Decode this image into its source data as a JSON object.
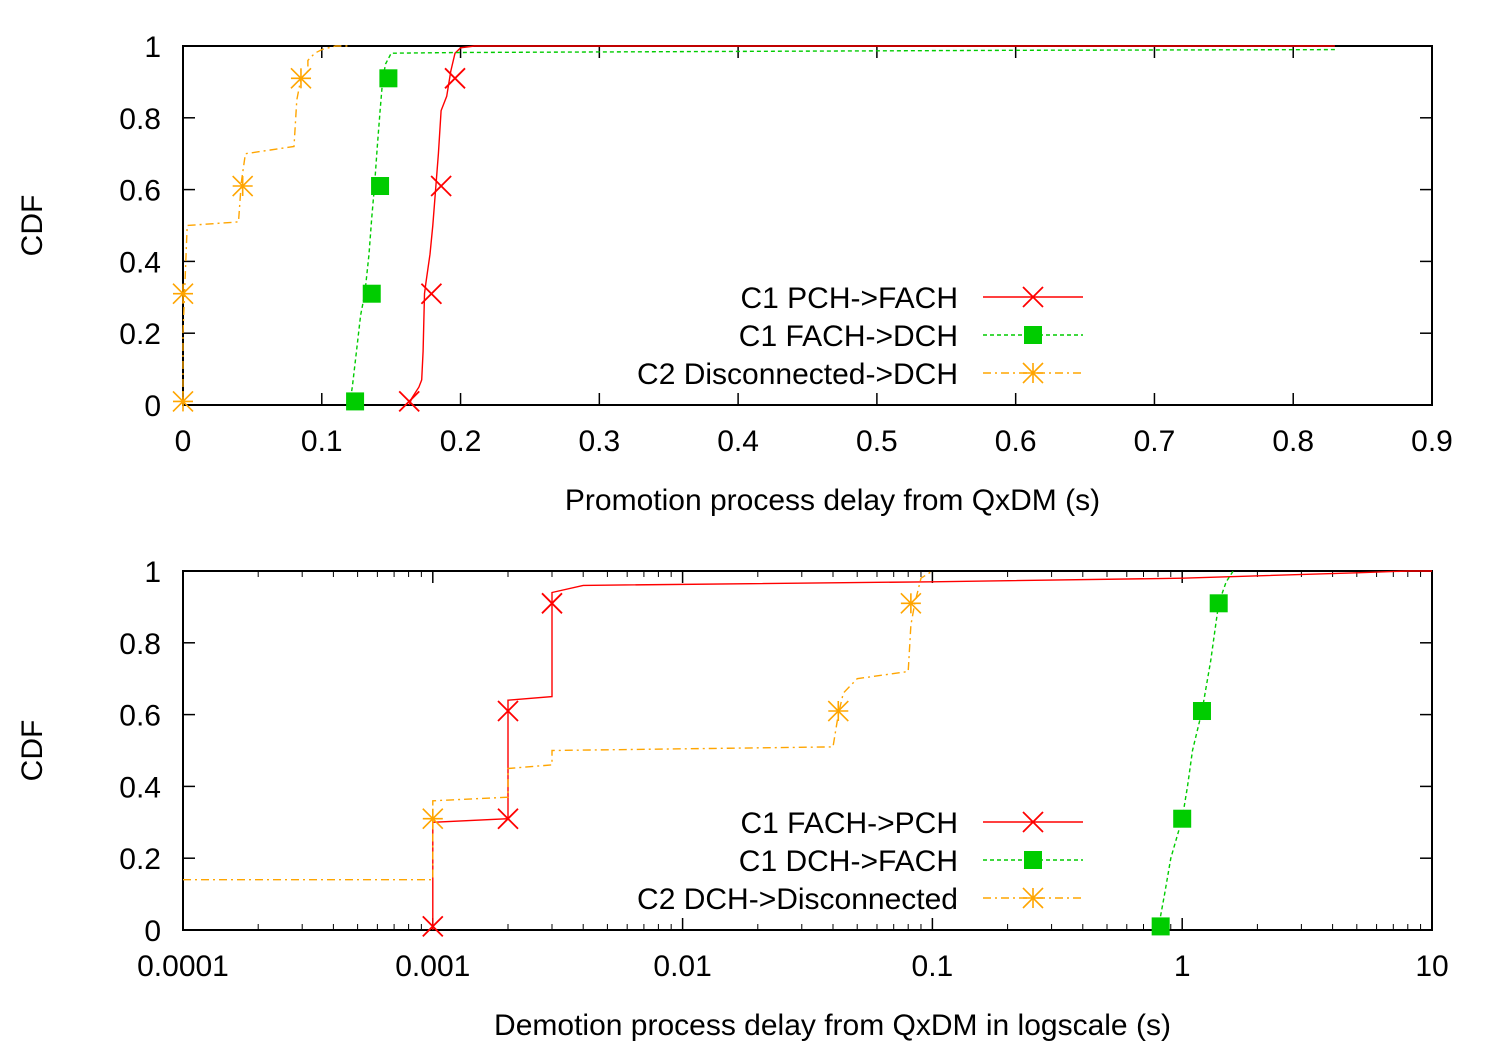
{
  "chart_data": [
    {
      "type": "line",
      "subtype": "cdf-step",
      "xlabel": "Promotion process delay from QxDM (s)",
      "ylabel": "CDF",
      "xscale": "linear",
      "xlim": [
        0,
        0.9
      ],
      "ylim": [
        0,
        1
      ],
      "xticks": [
        0,
        0.1,
        0.2,
        0.3,
        0.4,
        0.5,
        0.6,
        0.7,
        0.8,
        0.9
      ],
      "xtick_labels": [
        "0",
        "0.1",
        "0.2",
        "0.3",
        "0.4",
        "0.5",
        "0.6",
        "0.7",
        "0.8",
        "0.9"
      ],
      "yticks": [
        0,
        0.2,
        0.4,
        0.6,
        0.8,
        1
      ],
      "ytick_labels": [
        "0",
        "0.2",
        "0.4",
        "0.6",
        "0.8",
        "1"
      ],
      "grid": false,
      "legend_position": "bottom-center",
      "series": [
        {
          "name": "C1 PCH->FACH",
          "color": "#ff0000",
          "dash": "solid",
          "marker": "cross",
          "points": [
            [
              0.163,
              0
            ],
            [
              0.165,
              0.02
            ],
            [
              0.17,
              0.05
            ],
            [
              0.172,
              0.07
            ],
            [
              0.173,
              0.15
            ],
            [
              0.174,
              0.31
            ],
            [
              0.175,
              0.34
            ],
            [
              0.178,
              0.42
            ],
            [
              0.18,
              0.5
            ],
            [
              0.182,
              0.6
            ],
            [
              0.184,
              0.7
            ],
            [
              0.186,
              0.82
            ],
            [
              0.19,
              0.86
            ],
            [
              0.193,
              0.93
            ],
            [
              0.196,
              0.98
            ],
            [
              0.2,
              0.995
            ],
            [
              0.21,
              1.0
            ],
            [
              0.83,
              1.0
            ]
          ],
          "markers": [
            [
              0.163,
              0.01
            ],
            [
              0.179,
              0.31
            ],
            [
              0.186,
              0.61
            ],
            [
              0.196,
              0.91
            ]
          ]
        },
        {
          "name": "C1 FACH->DCH",
          "color": "#00cc00",
          "dash": "dotted",
          "marker": "filled-square",
          "points": [
            [
              0.12,
              0
            ],
            [
              0.122,
              0.05
            ],
            [
              0.125,
              0.15
            ],
            [
              0.128,
              0.25
            ],
            [
              0.131,
              0.31
            ],
            [
              0.134,
              0.42
            ],
            [
              0.136,
              0.52
            ],
            [
              0.138,
              0.61
            ],
            [
              0.14,
              0.72
            ],
            [
              0.142,
              0.82
            ],
            [
              0.144,
              0.91
            ],
            [
              0.146,
              0.95
            ],
            [
              0.15,
              0.98
            ],
            [
              0.2,
              0.982
            ],
            [
              0.4,
              0.985
            ],
            [
              0.6,
              0.988
            ],
            [
              0.83,
              0.99
            ]
          ],
          "markers": [
            [
              0.124,
              0.01
            ],
            [
              0.136,
              0.31
            ],
            [
              0.142,
              0.61
            ],
            [
              0.148,
              0.91
            ]
          ]
        },
        {
          "name": "C2 Disconnected->DCH",
          "color": "#ffa500",
          "dash": "dash-dot",
          "marker": "star",
          "points": [
            [
              0,
              0
            ],
            [
              0,
              0.2
            ],
            [
              0.002,
              0.4
            ],
            [
              0.003,
              0.5
            ],
            [
              0.04,
              0.51
            ],
            [
              0.042,
              0.62
            ],
            [
              0.045,
              0.7
            ],
            [
              0.08,
              0.72
            ],
            [
              0.082,
              0.85
            ],
            [
              0.085,
              0.91
            ],
            [
              0.09,
              0.93
            ],
            [
              0.09,
              0.96
            ],
            [
              0.095,
              0.98
            ],
            [
              0.1,
              0.99
            ],
            [
              0.11,
              1.0
            ],
            [
              0.12,
              1.0
            ]
          ],
          "markers": [
            [
              0,
              0.01
            ],
            [
              0,
              0.31
            ],
            [
              0.043,
              0.61
            ],
            [
              0.085,
              0.91
            ]
          ]
        }
      ]
    },
    {
      "type": "line",
      "subtype": "cdf-step",
      "xlabel": "Demotion process delay from QxDM in logscale (s)",
      "ylabel": "CDF",
      "xscale": "log",
      "xlim": [
        0.0001,
        10
      ],
      "ylim": [
        0,
        1
      ],
      "xticks": [
        0.0001,
        0.001,
        0.01,
        0.1,
        1,
        10
      ],
      "xtick_labels": [
        "0.0001",
        "0.001",
        "0.01",
        "0.1",
        "1",
        "10"
      ],
      "yticks": [
        0,
        0.2,
        0.4,
        0.6,
        0.8,
        1
      ],
      "ytick_labels": [
        "0",
        "0.2",
        "0.4",
        "0.6",
        "0.8",
        "1"
      ],
      "grid": false,
      "legend_position": "bottom-center",
      "series": [
        {
          "name": "C1 FACH->PCH",
          "color": "#ff0000",
          "dash": "solid",
          "marker": "cross",
          "points": [
            [
              0.001,
              0
            ],
            [
              0.001,
              0.3
            ],
            [
              0.002,
              0.31
            ],
            [
              0.002,
              0.64
            ],
            [
              0.003,
              0.65
            ],
            [
              0.003,
              0.94
            ],
            [
              0.004,
              0.96
            ],
            [
              0.1,
              0.97
            ],
            [
              1,
              0.98
            ],
            [
              5,
              0.995
            ],
            [
              8,
              1.0
            ],
            [
              10,
              1.0
            ]
          ],
          "markers": [
            [
              0.001,
              0.01
            ],
            [
              0.002,
              0.31
            ],
            [
              0.002,
              0.61
            ],
            [
              0.003,
              0.91
            ]
          ]
        },
        {
          "name": "C1 DCH->FACH",
          "color": "#00cc00",
          "dash": "dotted",
          "marker": "filled-square",
          "points": [
            [
              0.8,
              0
            ],
            [
              0.85,
              0.1
            ],
            [
              0.9,
              0.2
            ],
            [
              1.0,
              0.31
            ],
            [
              1.05,
              0.4
            ],
            [
              1.1,
              0.5
            ],
            [
              1.2,
              0.61
            ],
            [
              1.3,
              0.75
            ],
            [
              1.4,
              0.91
            ],
            [
              1.5,
              0.97
            ],
            [
              1.6,
              1.0
            ]
          ],
          "markers": [
            [
              0.82,
              0.01
            ],
            [
              1.0,
              0.31
            ],
            [
              1.2,
              0.61
            ],
            [
              1.4,
              0.91
            ]
          ]
        },
        {
          "name": "C2 DCH->Disconnected",
          "color": "#ffa500",
          "dash": "dash-dot",
          "marker": "star",
          "points": [
            [
              0.0001,
              0.14
            ],
            [
              0.001,
              0.14
            ],
            [
              0.001,
              0.36
            ],
            [
              0.002,
              0.37
            ],
            [
              0.002,
              0.45
            ],
            [
              0.003,
              0.46
            ],
            [
              0.003,
              0.5
            ],
            [
              0.04,
              0.51
            ],
            [
              0.042,
              0.6
            ],
            [
              0.044,
              0.66
            ],
            [
              0.05,
              0.7
            ],
            [
              0.08,
              0.72
            ],
            [
              0.082,
              0.85
            ],
            [
              0.085,
              0.91
            ],
            [
              0.09,
              0.98
            ],
            [
              0.1,
              1.0
            ]
          ],
          "markers": [
            [
              0.001,
              0.31
            ],
            [
              0.042,
              0.61
            ],
            [
              0.082,
              0.91
            ]
          ]
        }
      ]
    }
  ]
}
